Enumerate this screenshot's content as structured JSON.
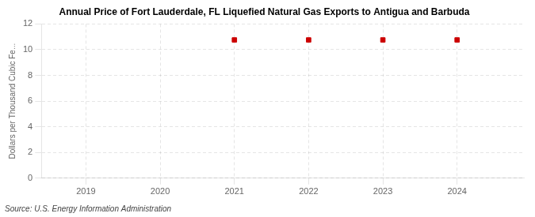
{
  "chart_data": {
    "type": "scatter",
    "title": "Annual Price of Fort Lauderdale, FL Liquefied Natural Gas Exports to Antigua and Barbuda",
    "ylabel": "Dollars per Thousand Cubic Fe...",
    "annotations": [
      "Source: U.S. Energy Information Administration"
    ],
    "x": [
      2021,
      2022,
      2023,
      2024
    ],
    "values": [
      10.76,
      10.76,
      10.76,
      10.76
    ],
    "color": "#cc0000",
    "marker": "square",
    "xlim": [
      2018.4,
      2024.9
    ],
    "xticks": [
      2019,
      2020,
      2021,
      2022,
      2023,
      2024
    ],
    "ylim": [
      0,
      12
    ],
    "yticks": [
      0,
      2,
      4,
      6,
      8,
      10,
      12
    ],
    "grid": true
  }
}
